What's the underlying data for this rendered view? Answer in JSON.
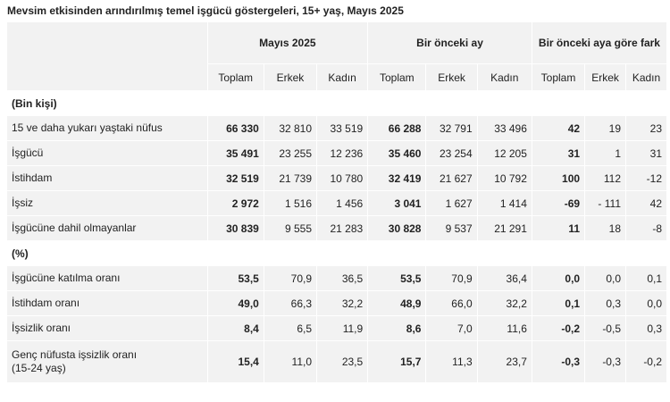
{
  "title": "Mevsim etkisinden arındırılmış temel işgücü göstergeleri, 15+ yaş, Mayıs 2025",
  "table": {
    "group_headers": [
      "Mayıs 2025",
      "Bir önceki ay",
      "Bir önceki aya göre fark"
    ],
    "sub_headers": [
      "Toplam",
      "Erkek",
      "Kadın",
      "Toplam",
      "Erkek",
      "Kadın",
      "Toplam",
      "Erkek",
      "Kadın"
    ],
    "rows": [
      [
        "(Bin kişi)"
      ],
      [
        "15 ve daha yukarı yaştaki nüfus",
        "66 330",
        "32 810",
        "33 519",
        "66 288",
        "32 791",
        "33 496",
        "42",
        "19",
        "23"
      ],
      [
        "İşgücü",
        "35 491",
        "23 255",
        "12 236",
        "35 460",
        "23 254",
        "12 205",
        "31",
        "1",
        "31"
      ],
      [
        "İstihdam",
        "32 519",
        "21 739",
        "10 780",
        "32 419",
        "21 627",
        "10 792",
        "100",
        "112",
        "-12"
      ],
      [
        "İşsiz",
        "2 972",
        "1 516",
        "1 456",
        "3 041",
        "1 627",
        "1 414",
        "-69",
        "- 111",
        "42"
      ],
      [
        "İşgücüne dahil olmayanlar",
        "30 839",
        "9 555",
        "21 283",
        "30 828",
        "9 537",
        "21 291",
        "11",
        "18",
        "-8"
      ],
      [
        "(%)"
      ],
      [
        "İşgücüne katılma oranı",
        "53,5",
        "70,9",
        "36,5",
        "53,5",
        "70,9",
        "36,4",
        "0,0",
        "0,0",
        "0,1"
      ],
      [
        "İstihdam oranı",
        "49,0",
        "66,3",
        "32,2",
        "48,9",
        "66,0",
        "32,2",
        "0,1",
        "0,3",
        "0,0"
      ],
      [
        "İşsizlik oranı",
        "8,4",
        "6,5",
        "11,9",
        "8,6",
        "7,0",
        "11,6",
        "-0,2",
        "-0,5",
        "0,3"
      ],
      [
        "Genç nüfusta işsizlik oranı\n(15-24 yaş)",
        "15,4",
        "11,0",
        "23,5",
        "15,7",
        "11,3",
        "23,7",
        "-0,3",
        "-0,3",
        "-0,2"
      ]
    ]
  }
}
